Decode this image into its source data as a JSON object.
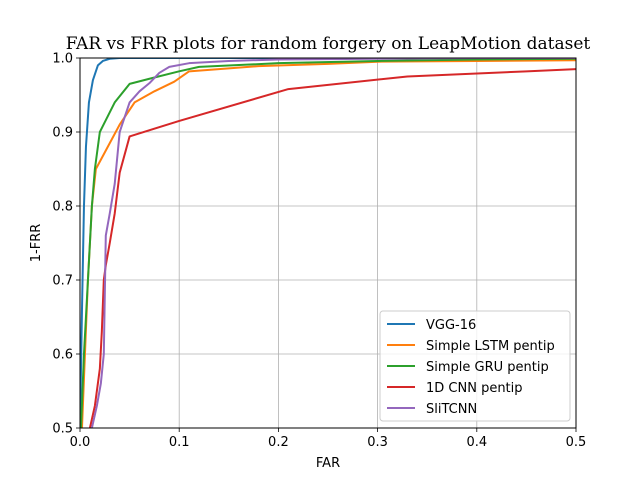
{
  "chart_data": {
    "type": "line",
    "title": "FAR vs FRR plots for random forgery on LeapMotion dataset",
    "xlabel": "FAR",
    "ylabel": "1-FRR",
    "xlim": [
      0,
      0.5
    ],
    "ylim": [
      0.5,
      1.0
    ],
    "xticks": [
      0.0,
      0.1,
      0.2,
      0.3,
      0.4,
      0.5
    ],
    "xtick_labels": [
      "0.0",
      "0.1",
      "0.2",
      "0.3",
      "0.4",
      "0.5"
    ],
    "yticks": [
      0.5,
      0.6,
      0.7,
      0.8,
      0.9,
      1.0
    ],
    "ytick_labels": [
      "0.5",
      "0.6",
      "0.7",
      "0.8",
      "0.9",
      "1.0"
    ],
    "grid": true,
    "legend_position": "bottom-right",
    "series": [
      {
        "name": "VGG-16",
        "color": "#1f77b4",
        "x": [
          0.0,
          0.002,
          0.004,
          0.006,
          0.009,
          0.013,
          0.018,
          0.023,
          0.03,
          0.04,
          0.06,
          0.1,
          0.2,
          0.3,
          0.4,
          0.5
        ],
        "y": [
          0.5,
          0.66,
          0.8,
          0.88,
          0.94,
          0.97,
          0.99,
          0.996,
          0.999,
          1.0,
          1.0,
          1.0,
          1.0,
          1.0,
          1.0,
          1.0
        ]
      },
      {
        "name": "Simple LSTM pentip",
        "color": "#ff7f0e",
        "x": [
          0.002,
          0.005,
          0.008,
          0.012,
          0.016,
          0.02,
          0.03,
          0.04,
          0.055,
          0.075,
          0.095,
          0.11,
          0.15,
          0.18,
          0.25,
          0.3,
          0.4,
          0.5
        ],
        "y": [
          0.5,
          0.6,
          0.7,
          0.8,
          0.85,
          0.86,
          0.885,
          0.91,
          0.94,
          0.955,
          0.968,
          0.982,
          0.986,
          0.989,
          0.992,
          0.995,
          0.996,
          0.997
        ]
      },
      {
        "name": "Simple GRU pentip",
        "color": "#2ca02c",
        "x": [
          0.001,
          0.004,
          0.008,
          0.012,
          0.015,
          0.02,
          0.035,
          0.05,
          0.07,
          0.1,
          0.12,
          0.2,
          0.3,
          0.4,
          0.5
        ],
        "y": [
          0.5,
          0.6,
          0.7,
          0.8,
          0.85,
          0.9,
          0.94,
          0.965,
          0.972,
          0.982,
          0.988,
          0.993,
          0.996,
          0.998,
          0.999
        ]
      },
      {
        "name": "1D CNN pentip",
        "color": "#d62728",
        "x": [
          0.01,
          0.015,
          0.02,
          0.022,
          0.024,
          0.026,
          0.03,
          0.035,
          0.04,
          0.05,
          0.1,
          0.21,
          0.33,
          0.45,
          0.5
        ],
        "y": [
          0.5,
          0.53,
          0.58,
          0.63,
          0.7,
          0.72,
          0.75,
          0.79,
          0.845,
          0.894,
          0.915,
          0.958,
          0.975,
          0.982,
          0.985
        ]
      },
      {
        "name": "SliTCNN",
        "color": "#9467bd",
        "x": [
          0.012,
          0.017,
          0.021,
          0.024,
          0.026,
          0.03,
          0.035,
          0.04,
          0.05,
          0.06,
          0.07,
          0.08,
          0.09,
          0.11,
          0.15,
          0.2,
          0.3,
          0.4,
          0.5
        ],
        "y": [
          0.5,
          0.53,
          0.56,
          0.6,
          0.76,
          0.79,
          0.83,
          0.9,
          0.94,
          0.955,
          0.966,
          0.98,
          0.988,
          0.993,
          0.996,
          0.998,
          0.999,
          1.0,
          1.0
        ]
      }
    ]
  }
}
